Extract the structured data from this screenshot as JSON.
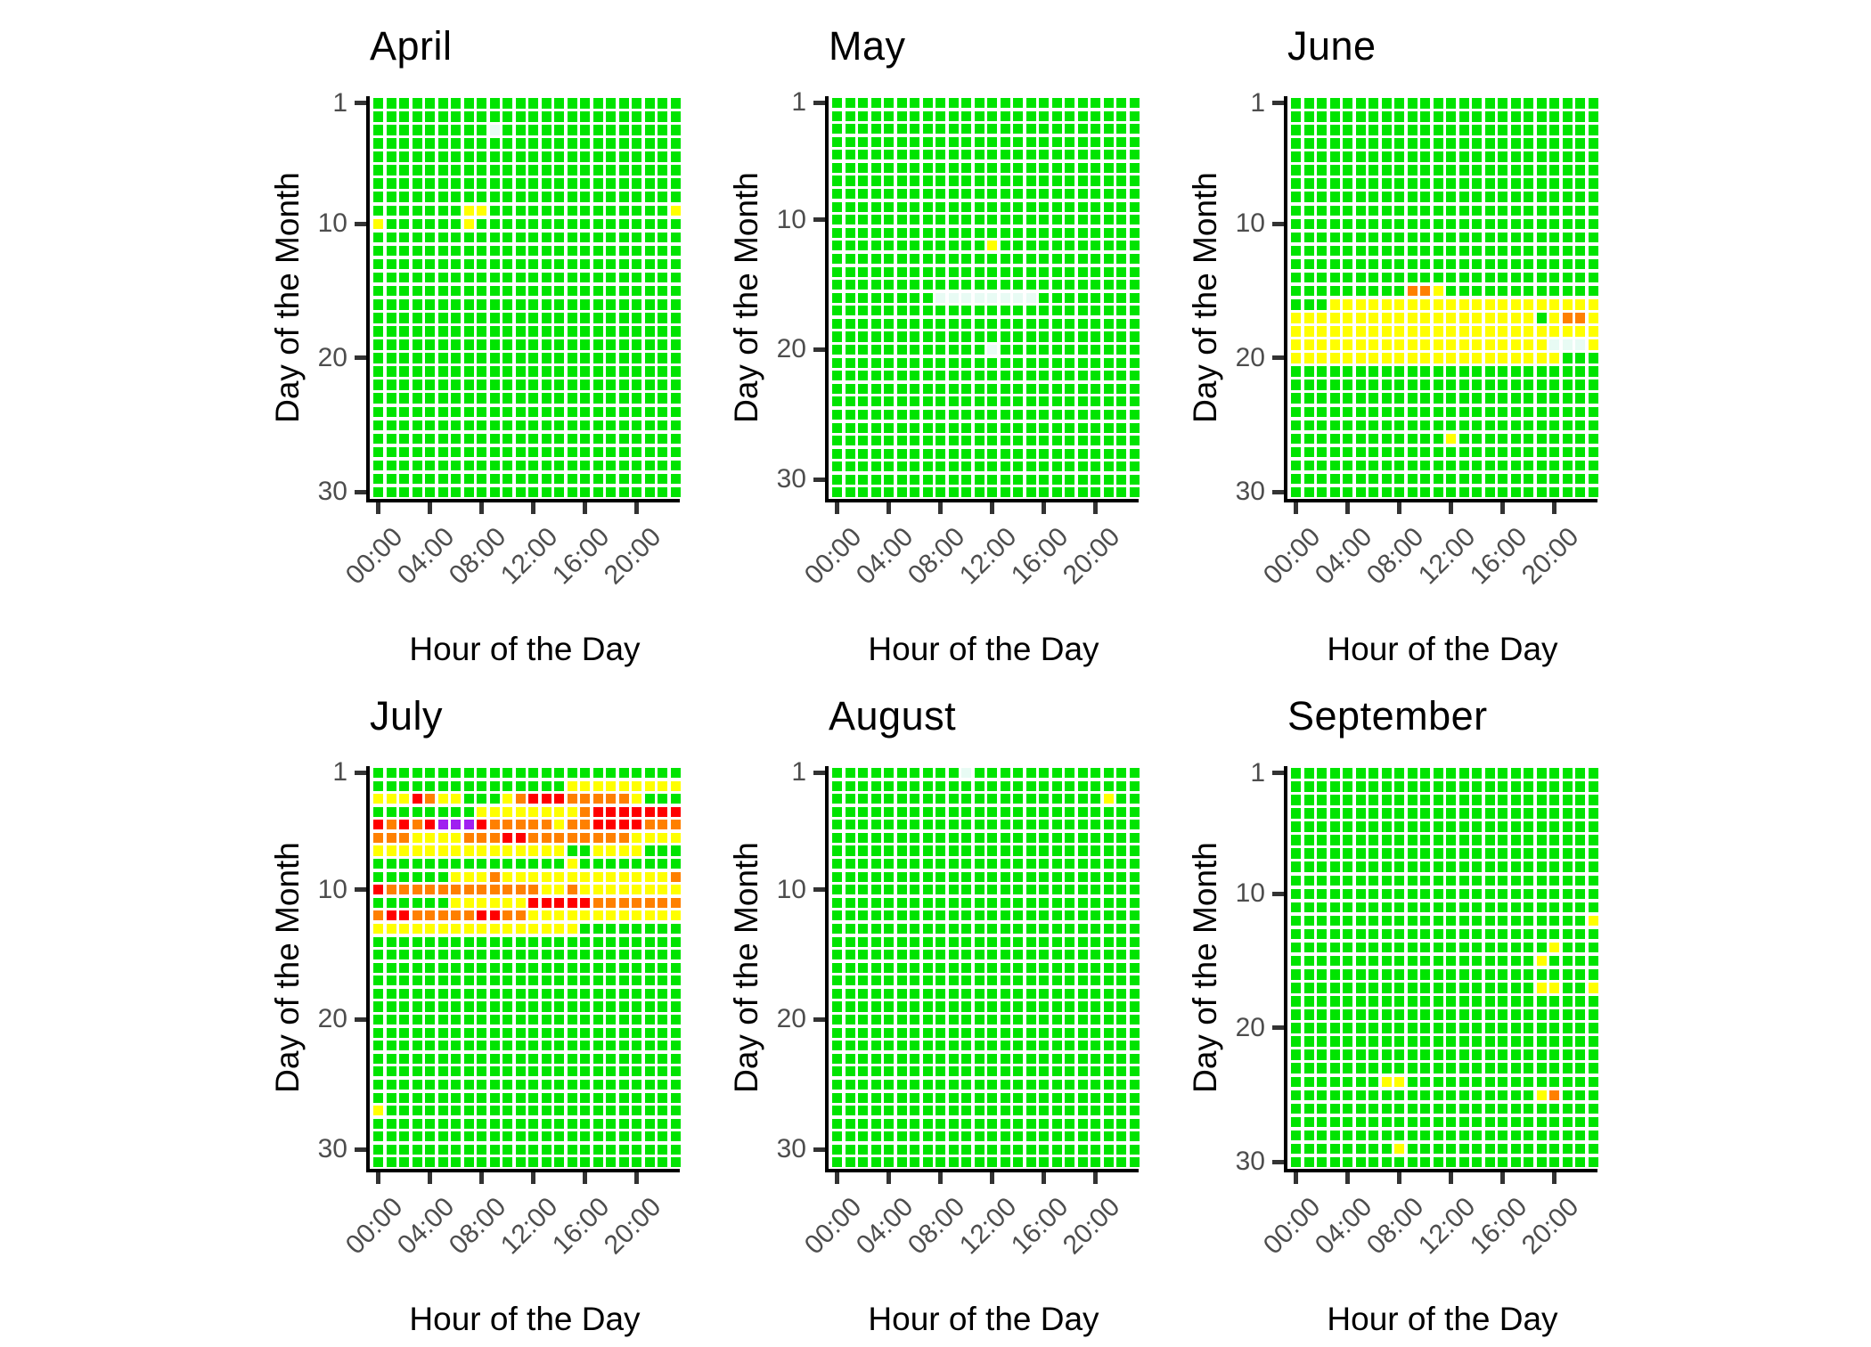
{
  "chart_data": {
    "type": "heatmap",
    "title": "",
    "xlabel": "Hour of the Day",
    "ylabel": "Day of the Month",
    "x_tick_labels": [
      "00:00",
      "04:00",
      "08:00",
      "12:00",
      "16:00",
      "20:00"
    ],
    "x_tick_hours": [
      0,
      4,
      8,
      12,
      16,
      20
    ],
    "y_tick_days": [
      1,
      10,
      20,
      30
    ],
    "hours_per_day": 24,
    "grid": "off",
    "legend_position": "none",
    "palette": {
      "G": "#00E400",
      "Y": "#FFFF00",
      "O": "#FF8000",
      "R": "#FF0000",
      "P": "#A020F0",
      "M": "#E8FBF4"
    },
    "default_value": "G",
    "panels": [
      {
        "title": "April",
        "days": 30,
        "runs": [
          [
            3,
            9,
            9,
            "M"
          ],
          [
            9,
            7,
            8,
            "Y"
          ],
          [
            9,
            23,
            23,
            "Y"
          ],
          [
            10,
            0,
            0,
            "Y"
          ],
          [
            10,
            7,
            7,
            "Y"
          ]
        ]
      },
      {
        "title": "May",
        "days": 31,
        "runs": [
          [
            12,
            12,
            12,
            "Y"
          ],
          [
            16,
            8,
            15,
            "M"
          ],
          [
            20,
            12,
            12,
            "M"
          ]
        ]
      },
      {
        "title": "June",
        "days": 30,
        "runs": [
          [
            15,
            9,
            10,
            "O"
          ],
          [
            15,
            11,
            11,
            "Y"
          ],
          [
            16,
            3,
            23,
            "Y"
          ],
          [
            17,
            0,
            18,
            "Y"
          ],
          [
            17,
            20,
            20,
            "Y"
          ],
          [
            17,
            21,
            22,
            "O"
          ],
          [
            17,
            23,
            23,
            "Y"
          ],
          [
            18,
            0,
            23,
            "Y"
          ],
          [
            19,
            0,
            19,
            "Y"
          ],
          [
            19,
            20,
            22,
            "M"
          ],
          [
            19,
            23,
            23,
            "Y"
          ],
          [
            20,
            0,
            20,
            "Y"
          ],
          [
            26,
            12,
            12,
            "Y"
          ]
        ]
      },
      {
        "title": "July",
        "days": 31,
        "runs": [
          [
            2,
            15,
            23,
            "Y"
          ],
          [
            3,
            0,
            2,
            "Y"
          ],
          [
            3,
            3,
            3,
            "R"
          ],
          [
            3,
            4,
            4,
            "O"
          ],
          [
            3,
            5,
            6,
            "Y"
          ],
          [
            3,
            10,
            10,
            "Y"
          ],
          [
            3,
            11,
            11,
            "O"
          ],
          [
            3,
            12,
            14,
            "R"
          ],
          [
            3,
            15,
            19,
            "O"
          ],
          [
            3,
            20,
            20,
            "Y"
          ],
          [
            4,
            8,
            15,
            "Y"
          ],
          [
            4,
            16,
            16,
            "O"
          ],
          [
            4,
            17,
            23,
            "R"
          ],
          [
            5,
            0,
            0,
            "R"
          ],
          [
            5,
            1,
            1,
            "O"
          ],
          [
            5,
            2,
            2,
            "R"
          ],
          [
            5,
            3,
            3,
            "O"
          ],
          [
            5,
            4,
            4,
            "R"
          ],
          [
            5,
            5,
            7,
            "P"
          ],
          [
            5,
            8,
            8,
            "R"
          ],
          [
            5,
            9,
            13,
            "O"
          ],
          [
            5,
            14,
            14,
            "Y"
          ],
          [
            5,
            15,
            16,
            "O"
          ],
          [
            5,
            17,
            20,
            "R"
          ],
          [
            5,
            21,
            23,
            "O"
          ],
          [
            6,
            0,
            2,
            "O"
          ],
          [
            6,
            3,
            6,
            "Y"
          ],
          [
            6,
            7,
            9,
            "O"
          ],
          [
            6,
            10,
            11,
            "R"
          ],
          [
            6,
            12,
            19,
            "O"
          ],
          [
            6,
            20,
            23,
            "Y"
          ],
          [
            7,
            0,
            14,
            "Y"
          ],
          [
            7,
            17,
            20,
            "Y"
          ],
          [
            8,
            15,
            15,
            "Y"
          ],
          [
            9,
            6,
            8,
            "Y"
          ],
          [
            9,
            9,
            9,
            "O"
          ],
          [
            9,
            10,
            22,
            "Y"
          ],
          [
            9,
            23,
            23,
            "O"
          ],
          [
            10,
            0,
            0,
            "R"
          ],
          [
            10,
            1,
            12,
            "O"
          ],
          [
            10,
            13,
            14,
            "Y"
          ],
          [
            10,
            15,
            15,
            "O"
          ],
          [
            10,
            16,
            23,
            "Y"
          ],
          [
            11,
            6,
            11,
            "Y"
          ],
          [
            11,
            12,
            16,
            "R"
          ],
          [
            11,
            17,
            23,
            "O"
          ],
          [
            12,
            0,
            0,
            "O"
          ],
          [
            12,
            1,
            2,
            "R"
          ],
          [
            12,
            3,
            7,
            "O"
          ],
          [
            12,
            8,
            9,
            "R"
          ],
          [
            12,
            10,
            11,
            "O"
          ],
          [
            12,
            12,
            23,
            "Y"
          ],
          [
            13,
            0,
            15,
            "Y"
          ],
          [
            27,
            0,
            0,
            "Y"
          ]
        ]
      },
      {
        "title": "August",
        "days": 31,
        "runs": [
          [
            1,
            10,
            10,
            "M"
          ],
          [
            3,
            21,
            21,
            "Y"
          ]
        ]
      },
      {
        "title": "September",
        "days": 30,
        "runs": [
          [
            12,
            23,
            23,
            "Y"
          ],
          [
            14,
            20,
            20,
            "Y"
          ],
          [
            15,
            19,
            19,
            "Y"
          ],
          [
            17,
            19,
            20,
            "Y"
          ],
          [
            17,
            23,
            23,
            "Y"
          ],
          [
            24,
            7,
            8,
            "Y"
          ],
          [
            25,
            19,
            19,
            "Y"
          ],
          [
            25,
            20,
            20,
            "O"
          ],
          [
            29,
            8,
            8,
            "Y"
          ]
        ]
      }
    ]
  }
}
